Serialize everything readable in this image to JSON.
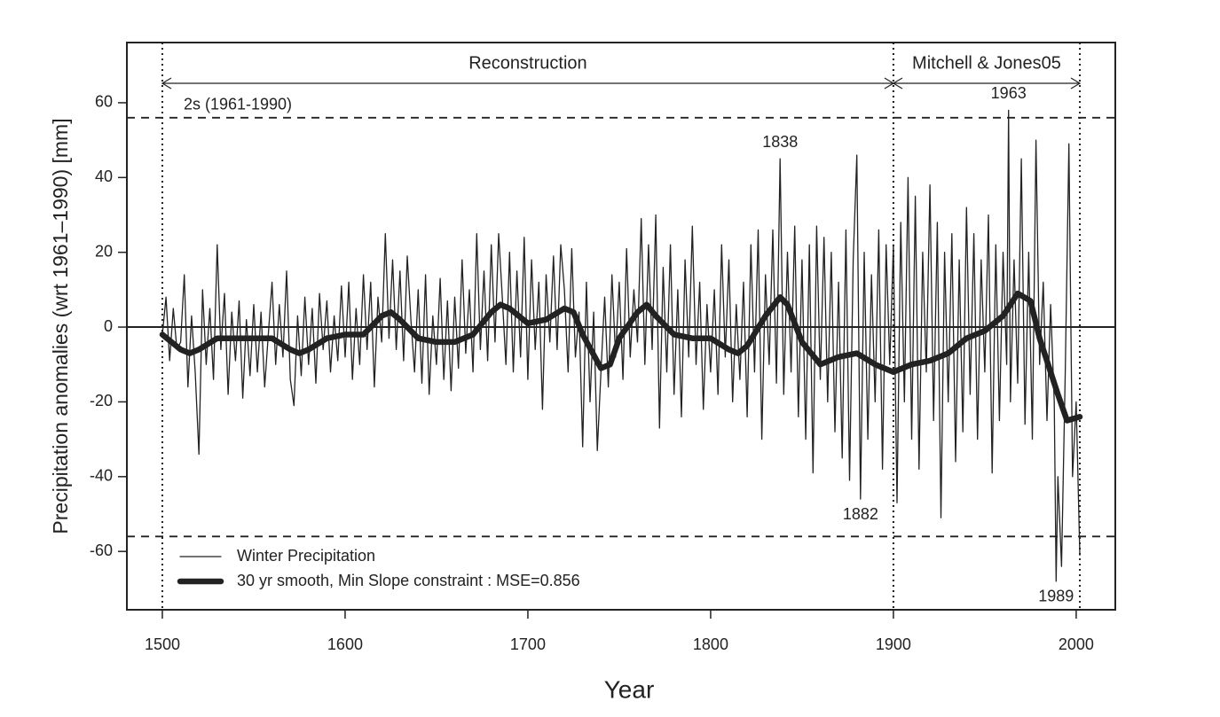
{
  "chart_data": {
    "type": "line",
    "xlabel": "Year",
    "ylabel": "Precipitation anomalies (wrt 1961–1990) [mm]",
    "xlim": [
      1480.6,
      2021.4
    ],
    "ylim": [
      -75.6,
      76.1
    ],
    "xticks": [
      1500,
      1600,
      1700,
      1800,
      1900,
      2000
    ],
    "yticks": [
      -60,
      -40,
      -20,
      0,
      20,
      40,
      60
    ],
    "zero_line": 0,
    "legend": "lower left",
    "threshold": {
      "label": "2s (1961-1990)",
      "values": [
        56,
        -56
      ]
    },
    "periods": [
      {
        "label": "Reconstruction",
        "start": 1500,
        "end": 1900
      },
      {
        "label": "Mitchell & Jones05",
        "start": 1900,
        "end": 2002
      }
    ],
    "annotations": [
      {
        "text": "1838",
        "x": 1838,
        "y": 45
      },
      {
        "text": "1882",
        "x": 1882,
        "y": -46
      },
      {
        "text": "1963",
        "x": 1963,
        "y": 58
      },
      {
        "text": "1989",
        "x": 1989,
        "y": -68
      }
    ],
    "series": [
      {
        "name": "Winter Precipitation",
        "color": "#222222",
        "width": 1.3,
        "x": [
          1500,
          1502,
          1504,
          1506,
          1508,
          1510,
          1512,
          1514,
          1516,
          1518,
          1520,
          1522,
          1524,
          1526,
          1528,
          1530,
          1532,
          1534,
          1536,
          1538,
          1540,
          1542,
          1544,
          1546,
          1548,
          1550,
          1552,
          1554,
          1556,
          1558,
          1560,
          1562,
          1564,
          1566,
          1568,
          1570,
          1572,
          1574,
          1576,
          1578,
          1580,
          1582,
          1584,
          1586,
          1588,
          1590,
          1592,
          1594,
          1596,
          1598,
          1600,
          1602,
          1604,
          1606,
          1608,
          1610,
          1612,
          1614,
          1616,
          1618,
          1620,
          1622,
          1624,
          1626,
          1628,
          1630,
          1632,
          1634,
          1636,
          1638,
          1640,
          1642,
          1644,
          1646,
          1648,
          1650,
          1652,
          1654,
          1656,
          1658,
          1660,
          1662,
          1664,
          1666,
          1668,
          1670,
          1672,
          1674,
          1676,
          1678,
          1680,
          1682,
          1684,
          1686,
          1688,
          1690,
          1692,
          1694,
          1696,
          1698,
          1700,
          1702,
          1704,
          1706,
          1708,
          1710,
          1712,
          1714,
          1716,
          1718,
          1720,
          1722,
          1724,
          1726,
          1728,
          1730,
          1732,
          1734,
          1736,
          1738,
          1740,
          1742,
          1744,
          1746,
          1748,
          1750,
          1752,
          1754,
          1756,
          1758,
          1760,
          1762,
          1764,
          1766,
          1768,
          1770,
          1772,
          1774,
          1776,
          1778,
          1780,
          1782,
          1784,
          1786,
          1788,
          1790,
          1792,
          1794,
          1796,
          1798,
          1800,
          1802,
          1804,
          1806,
          1808,
          1810,
          1812,
          1814,
          1816,
          1818,
          1820,
          1822,
          1824,
          1826,
          1828,
          1830,
          1832,
          1834,
          1836,
          1838,
          1840,
          1842,
          1844,
          1846,
          1848,
          1850,
          1852,
          1854,
          1856,
          1858,
          1860,
          1862,
          1864,
          1866,
          1868,
          1870,
          1872,
          1874,
          1876,
          1878,
          1880,
          1882,
          1884,
          1886,
          1888,
          1890,
          1892,
          1894,
          1896,
          1898,
          1900,
          1902,
          1904,
          1906,
          1908,
          1910,
          1912,
          1914,
          1916,
          1918,
          1920,
          1922,
          1924,
          1926,
          1928,
          1930,
          1932,
          1934,
          1936,
          1938,
          1940,
          1942,
          1944,
          1946,
          1948,
          1950,
          1952,
          1954,
          1956,
          1958,
          1960,
          1962,
          1963,
          1964,
          1966,
          1968,
          1970,
          1972,
          1974,
          1976,
          1978,
          1980,
          1982,
          1984,
          1986,
          1988,
          1989,
          1990,
          1992,
          1994,
          1996,
          1998,
          2000,
          2002
        ],
        "values": [
          -2,
          8,
          -9,
          5,
          -6,
          -4,
          14,
          -16,
          3,
          -12,
          -34,
          10,
          -10,
          5,
          -14,
          22,
          -6,
          9,
          -18,
          4,
          -9,
          7,
          -19,
          2,
          -13,
          6,
          -12,
          4,
          -16,
          -2,
          12,
          -10,
          6,
          -8,
          15,
          -14,
          -21,
          3,
          -13,
          8,
          -10,
          5,
          -15,
          9,
          -6,
          7,
          -12,
          3,
          -9,
          11,
          -8,
          12,
          -14,
          5,
          -10,
          14,
          -6,
          12,
          -16,
          8,
          -4,
          25,
          -3,
          18,
          -6,
          15,
          -9,
          19,
          2,
          -12,
          10,
          -15,
          14,
          -18,
          3,
          -10,
          13,
          -14,
          7,
          -17,
          8,
          -11,
          18,
          -7,
          10,
          -12,
          25,
          -6,
          15,
          -9,
          22,
          -4,
          25,
          8,
          -10,
          20,
          -12,
          15,
          -8,
          24,
          -14,
          18,
          -6,
          12,
          -22,
          14,
          -4,
          19,
          -6,
          22,
          10,
          -12,
          21,
          -8,
          4,
          -32,
          12,
          -20,
          4,
          -33,
          -12,
          8,
          -16,
          14,
          -8,
          12,
          -14,
          21,
          -8,
          10,
          -4,
          29,
          -10,
          22,
          -6,
          30,
          -27,
          16,
          -12,
          22,
          -18,
          10,
          -24,
          18,
          -8,
          27,
          -10,
          12,
          -22,
          6,
          -12,
          10,
          -18,
          22,
          -8,
          18,
          -20,
          6,
          -14,
          12,
          -24,
          22,
          -12,
          26,
          -30,
          14,
          -10,
          26,
          -15,
          45,
          -18,
          20,
          -12,
          27,
          -24,
          18,
          -30,
          22,
          -39,
          27,
          -14,
          24,
          -20,
          20,
          -28,
          12,
          -35,
          26,
          -41,
          18,
          46,
          -46,
          20,
          -30,
          14,
          -20,
          26,
          -38,
          22,
          -10,
          22,
          -47,
          28,
          -20,
          40,
          -30,
          35,
          -38,
          20,
          -12,
          38,
          -25,
          28,
          -51,
          20,
          -20,
          25,
          -36,
          18,
          -28,
          32,
          -18,
          25,
          -30,
          18,
          -12,
          30,
          -39,
          22,
          -25,
          20,
          -10,
          58,
          -20,
          18,
          -15,
          45,
          -26,
          20,
          -30,
          50,
          -10,
          12,
          -25,
          6,
          -20,
          -68,
          -40,
          -64,
          -12,
          49,
          -40,
          -20,
          -61
        ]
      },
      {
        "name": "30 yr smooth, Min Slope constraint : MSE=0.856",
        "color": "#222222",
        "width": 6.5,
        "x": [
          1500,
          1510,
          1515,
          1520,
          1530,
          1540,
          1550,
          1560,
          1570,
          1575,
          1580,
          1590,
          1600,
          1610,
          1620,
          1625,
          1630,
          1640,
          1650,
          1660,
          1670,
          1680,
          1685,
          1690,
          1700,
          1710,
          1720,
          1725,
          1730,
          1740,
          1745,
          1750,
          1760,
          1765,
          1770,
          1780,
          1790,
          1800,
          1810,
          1815,
          1820,
          1830,
          1838,
          1842,
          1850,
          1860,
          1870,
          1880,
          1890,
          1900,
          1910,
          1920,
          1930,
          1940,
          1950,
          1960,
          1968,
          1975,
          1980,
          1990,
          1995,
          2002
        ],
        "values": [
          -2,
          -6,
          -7,
          -6,
          -3,
          -3,
          -3,
          -3,
          -6,
          -7,
          -6,
          -3,
          -2,
          -2,
          3,
          4,
          2,
          -3,
          -4,
          -4,
          -2,
          4,
          6,
          5,
          1,
          2,
          5,
          4,
          -2,
          -11,
          -10,
          -3,
          4,
          6,
          3,
          -2,
          -3,
          -3,
          -6,
          -7,
          -5,
          3,
          8,
          6,
          -4,
          -10,
          -8,
          -7,
          -10,
          -12,
          -10,
          -9,
          -7,
          -3,
          -1,
          3,
          9,
          7,
          -3,
          -18,
          -25,
          -24
        ]
      }
    ]
  }
}
